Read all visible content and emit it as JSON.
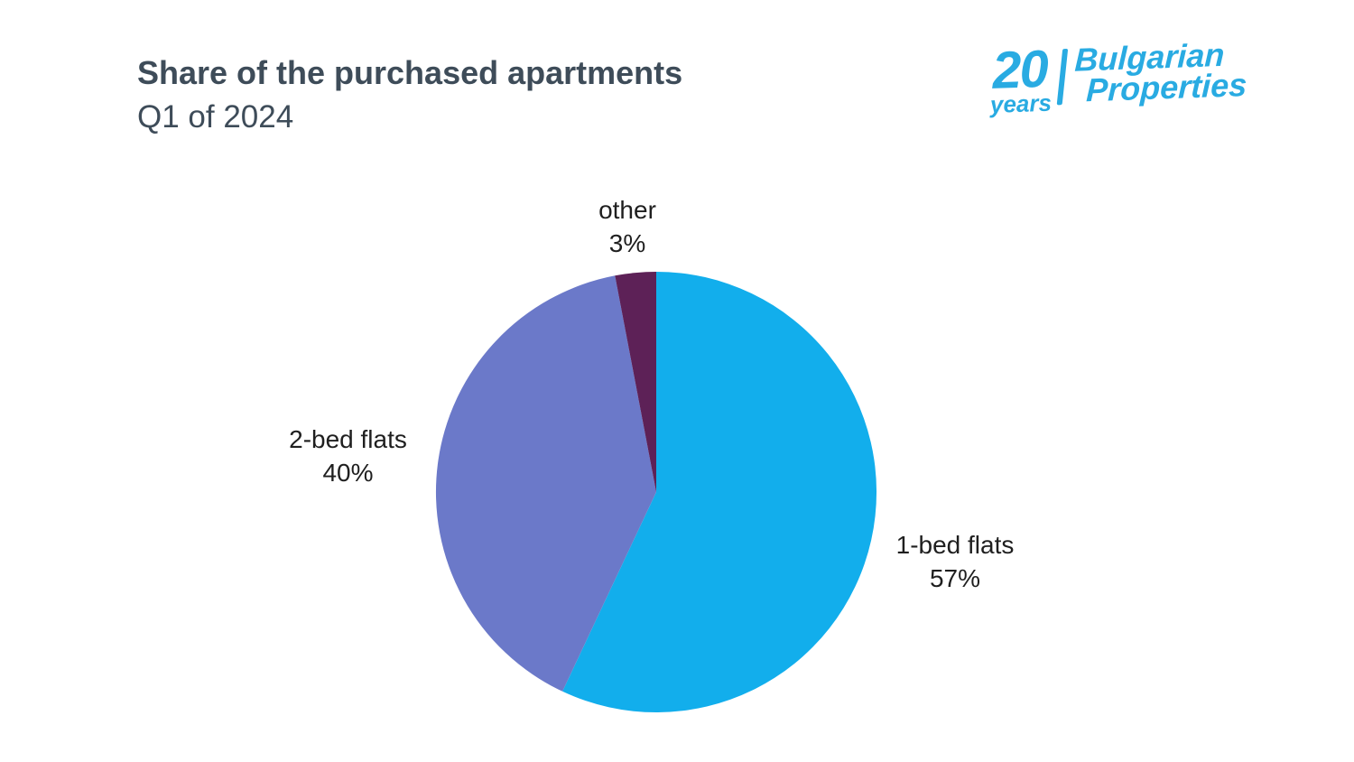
{
  "header": {
    "title": "Share of the purchased apartments",
    "subtitle": "Q1 of 2024"
  },
  "logo": {
    "years_number": "20",
    "years_word": "years",
    "brand_line1": "Bulgarian",
    "brand_line2": "Properties",
    "brand_color": "#29abe2"
  },
  "chart_data": {
    "type": "pie",
    "title": "Share of the purchased apartments",
    "subtitle": "Q1 of 2024",
    "start_angle_deg": 0,
    "direction": "clockwise",
    "legend": "direct-labels",
    "slices": [
      {
        "label": "1-bed flats",
        "value": 57,
        "pct_label": "57%",
        "color": "#12aeec"
      },
      {
        "label": "2-bed flats",
        "value": 40,
        "pct_label": "40%",
        "color": "#6b79c9"
      },
      {
        "label": "other",
        "value": 3,
        "pct_label": "3%",
        "color": "#5d2157"
      }
    ]
  }
}
